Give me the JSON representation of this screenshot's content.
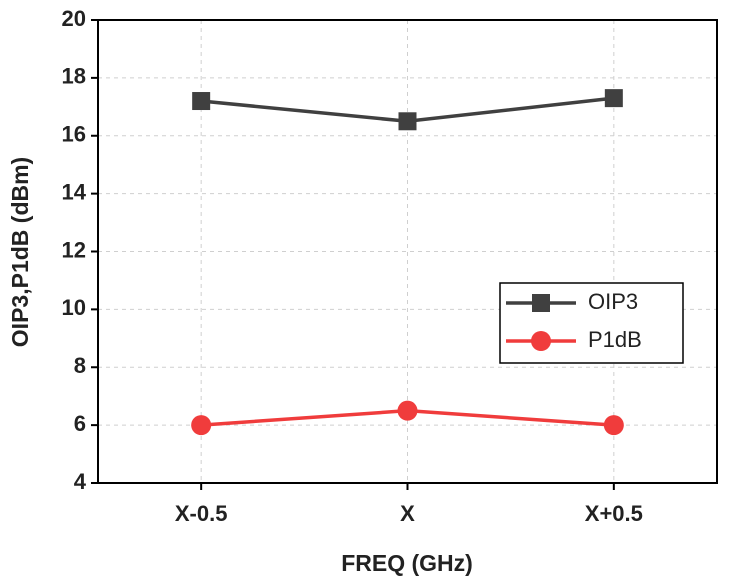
{
  "chart_data": {
    "type": "line",
    "x_label": "FREQ (GHz)",
    "y_label": "OIP3,P1dB (dBm)",
    "categories": [
      "X-0.5",
      "X",
      "X+0.5"
    ],
    "series": [
      {
        "name": "OIP3",
        "color": "#404040",
        "marker": "square",
        "values": [
          17.2,
          16.5,
          17.3
        ]
      },
      {
        "name": "P1dB",
        "color": "#f03c3c",
        "marker": "circle",
        "values": [
          6.0,
          6.5,
          6.0
        ]
      }
    ],
    "ylim": [
      4,
      20
    ],
    "yticks": [
      4,
      6,
      8,
      10,
      12,
      14,
      16,
      18,
      20
    ],
    "grid": true,
    "legend": "right"
  }
}
